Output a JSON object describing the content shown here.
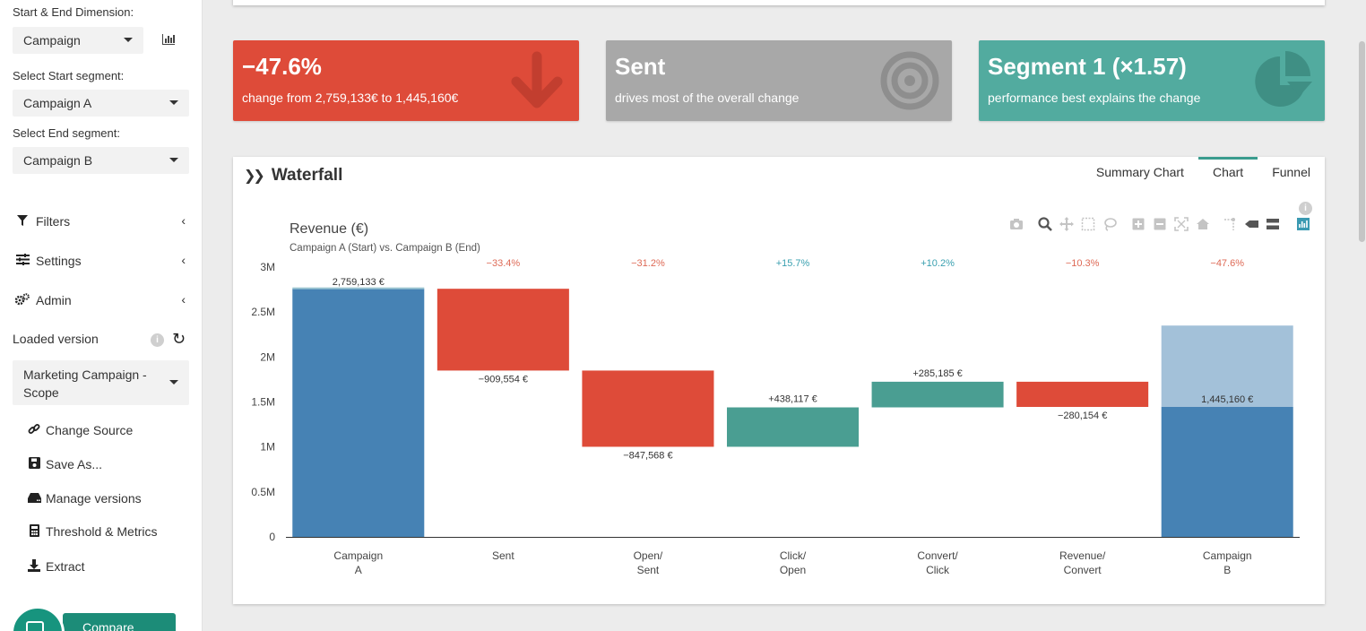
{
  "sidebar": {
    "dimension_label": "Start & End Dimension:",
    "dimension_value": "Campaign",
    "start_label": "Select Start segment:",
    "start_value": "Campaign A",
    "end_label": "Select End segment:",
    "end_value": "Campaign B",
    "nav": [
      {
        "label": "Filters",
        "icon": "filter-icon"
      },
      {
        "label": "Settings",
        "icon": "sliders-icon"
      },
      {
        "label": "Admin",
        "icon": "gears-icon"
      }
    ],
    "loaded_version_label": "Loaded version",
    "loaded_version_value": "Marketing Campaign - Scope",
    "subnav": [
      {
        "label": "Change Source",
        "icon": "link-icon"
      },
      {
        "label": "Save As...",
        "icon": "save-icon"
      },
      {
        "label": "Manage versions",
        "icon": "hdd-icon"
      },
      {
        "label": "Threshold & Metrics",
        "icon": "calculator-icon"
      },
      {
        "label": "Extract",
        "icon": "download-icon"
      }
    ],
    "compare_label": "Compare"
  },
  "kpis": [
    {
      "value": "−47.6%",
      "subtitle": "change from 2,759,133€ to 1,445,160€",
      "color": "#de4b39",
      "icon": "arrow-down-icon"
    },
    {
      "value": "Sent",
      "subtitle": "drives most of the overall change",
      "color": "#a8a8a8",
      "icon": "target-icon"
    },
    {
      "value": "Segment 1 (×1.57)",
      "subtitle": "performance best explains the change",
      "color": "#52ab9f",
      "icon": "pie-chart-icon"
    }
  ],
  "panel": {
    "title": "Waterfall",
    "tabs": [
      "Summary Chart",
      "Chart",
      "Funnel"
    ],
    "active_tab": "Chart"
  },
  "chart_data": {
    "type": "bar",
    "title": "Revenue (€)",
    "subtitle": "Campaign A (Start) vs. Campaign B (End)",
    "ylim": [
      0,
      3000000
    ],
    "yticks": [
      "0",
      "0.5M",
      "1M",
      "1.5M",
      "2M",
      "2.5M",
      "3M"
    ],
    "yticks_values": [
      0,
      500000,
      1000000,
      1500000,
      2000000,
      2500000,
      3000000
    ],
    "categories": [
      [
        "Campaign",
        "A"
      ],
      [
        "Sent"
      ],
      [
        "Open/",
        "Sent"
      ],
      [
        "Click/",
        "Open"
      ],
      [
        "Convert/",
        "Click"
      ],
      [
        "Revenue/",
        "Convert"
      ],
      [
        "Campaign",
        "B"
      ]
    ],
    "bars": [
      {
        "kind": "total",
        "start": 0,
        "end": 2759133,
        "label": "2,759,133 €",
        "pct": ""
      },
      {
        "kind": "delta",
        "start": 2759133,
        "end": 1849579,
        "label": "−909,554 €",
        "pct": "−33.4%"
      },
      {
        "kind": "delta",
        "start": 1849579,
        "end": 1002011,
        "label": "−847,568 €",
        "pct": "−31.2%"
      },
      {
        "kind": "delta",
        "start": 1002011,
        "end": 1440128,
        "label": "+438,117 €",
        "pct": "+15.7%"
      },
      {
        "kind": "delta",
        "start": 1440128,
        "end": 1725313,
        "label": "+285,185 €",
        "pct": "+10.2%"
      },
      {
        "kind": "delta",
        "start": 1725313,
        "end": 1445160,
        "label": "−280,154 €",
        "pct": "−10.3%"
      },
      {
        "kind": "total",
        "start": 0,
        "end": 1445160,
        "label": "1,445,160 €",
        "pct": "−47.6%",
        "ghost_end": 2350000
      }
    ],
    "colors": {
      "total": "#4682b4",
      "total_ghost": "#a3c1d9",
      "decrease": "#de4b39",
      "increase": "#4a9e92",
      "pct_negative": "#de6a56",
      "pct_positive": "#3aa0b0"
    },
    "modebar": [
      "camera-icon",
      "zoom-icon",
      "pan-icon",
      "box-select-icon",
      "lasso-icon",
      "zoom-in-icon",
      "zoom-out-icon",
      "autoscale-icon",
      "reset-axes-icon",
      "spike-lines-icon",
      "hover-closest-icon",
      "hover-compare-icon",
      "plotly-logo-icon"
    ]
  }
}
